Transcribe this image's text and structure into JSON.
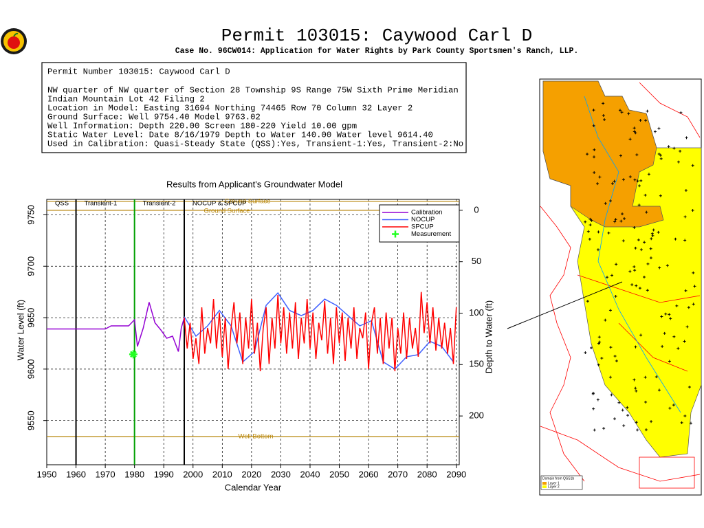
{
  "header": {
    "title": "Permit 103015:  Caywood Carl D",
    "subtitle": "Case No. 96CW014: Application for Water Rights by Park County Sportsmen's Ranch, LLP."
  },
  "info": {
    "lines": [
      "Permit Number 103015: Caywood Carl D",
      "NW quarter of NW quarter of Section 28 Township 9S Range 75W Sixth Prime Meridian",
      "Indian Mountain Lot 42 Filing 2",
      "Location in Model: Easting 31694 Northing  74465 Row  70 Column 32 Layer 2",
      "Ground Surface: Well  9754.40 Model  9763.02",
      "Well Information: Depth   220.00 Screen 180-220 Yield    10.00 gpm",
      "Static Water Level: Date  8/16/1979 Depth to Water   140.00 Water level  9614.40",
      "Used in Calibration: Quasi-Steady State (QSS):Yes, Transient-1:Yes, Transient-2:No"
    ]
  },
  "chart_data": {
    "type": "line",
    "title": "Results from Applicant's Groundwater Model",
    "xlabel": "Calendar Year",
    "ylabel": "Water Level (ft)",
    "y2label": "Depth to Water (ft)",
    "xlim": [
      1950,
      2091
    ],
    "xticks": [
      1950,
      1960,
      1970,
      1980,
      1990,
      2000,
      2010,
      2020,
      2030,
      2040,
      2050,
      2060,
      2070,
      2080,
      2090
    ],
    "ylim": [
      9507,
      9765
    ],
    "yticks": [
      9550,
      9600,
      9650,
      9700,
      9750
    ],
    "y2lim": [
      -10.6,
      247.4
    ],
    "y2ticks": [
      0,
      50,
      100,
      150,
      200
    ],
    "grid": true,
    "periods": [
      {
        "label": "QSS",
        "start": 1950,
        "color": "#000000"
      },
      {
        "label": "Transient-1",
        "start": 1960,
        "color": "#000000"
      },
      {
        "label": "Transient-2",
        "start": 1980,
        "color": "#00a000"
      },
      {
        "label": "NOCUP & SPCUP",
        "start": 1997,
        "color": "#000000"
      }
    ],
    "reference_lines": [
      {
        "label": "Ground Surface",
        "value": 9763.02,
        "color": "#b8860b"
      },
      {
        "label": "Ground Surface",
        "value": 9754.4,
        "color": "#b8860b"
      },
      {
        "label": "Well Bottom",
        "value": 9534.4,
        "color": "#b8860b"
      }
    ],
    "series": [
      {
        "name": "Calibration",
        "color": "#9400d3",
        "x": [
          1950,
          1960,
          1970,
          1972,
          1978,
          1980,
          1981,
          1983,
          1985,
          1987,
          1989,
          1991,
          1993,
          1995,
          1996,
          1997
        ],
        "values": [
          9639,
          9639,
          9639,
          9642,
          9642,
          9648,
          9622,
          9640,
          9665,
          9645,
          9638,
          9630,
          9632,
          9617,
          9640,
          9650
        ]
      },
      {
        "name": "NOCUP",
        "color": "#4060ff",
        "x": [
          1997,
          2001,
          2005,
          2009,
          2013,
          2017,
          2021,
          2025,
          2029,
          2033,
          2037,
          2041,
          2045,
          2049,
          2053,
          2057,
          2061,
          2065,
          2069,
          2073,
          2077,
          2081,
          2085,
          2089
        ],
        "values": [
          9651,
          9632,
          9642,
          9657,
          9642,
          9607,
          9617,
          9662,
          9674,
          9657,
          9652,
          9657,
          9668,
          9662,
          9652,
          9642,
          9647,
          9607,
          9600,
          9612,
          9614,
          9627,
          9622,
          9607
        ]
      },
      {
        "name": "SPCUP",
        "color": "#ff0000",
        "x": [
          1997,
          1998,
          1999,
          2000,
          2001,
          2002,
          2003,
          2004,
          2005,
          2006,
          2007,
          2008,
          2009,
          2010,
          2011,
          2012,
          2013,
          2014,
          2015,
          2016,
          2017,
          2018,
          2019,
          2020,
          2021,
          2022,
          2023,
          2024,
          2025,
          2026,
          2027,
          2028,
          2029,
          2030,
          2031,
          2032,
          2033,
          2034,
          2035,
          2036,
          2037,
          2038,
          2039,
          2040,
          2041,
          2042,
          2043,
          2044,
          2045,
          2046,
          2047,
          2048,
          2049,
          2050,
          2051,
          2052,
          2053,
          2054,
          2055,
          2056,
          2057,
          2058,
          2059,
          2060,
          2061,
          2062,
          2063,
          2064,
          2065,
          2066,
          2067,
          2068,
          2069,
          2070,
          2071,
          2072,
          2073,
          2074,
          2075,
          2076,
          2077,
          2078,
          2079,
          2080,
          2081,
          2082,
          2083,
          2084,
          2085,
          2086,
          2087,
          2088,
          2089,
          2090
        ],
        "values": [
          9650,
          9620,
          9645,
          9610,
          9630,
          9605,
          9660,
          9615,
          9640,
          9625,
          9668,
          9620,
          9655,
          9612,
          9650,
          9600,
          9640,
          9665,
          9625,
          9655,
          9605,
          9650,
          9620,
          9668,
          9615,
          9645,
          9598,
          9640,
          9660,
          9605,
          9650,
          9620,
          9672,
          9625,
          9660,
          9615,
          9655,
          9620,
          9665,
          9610,
          9650,
          9625,
          9668,
          9620,
          9655,
          9610,
          9645,
          9628,
          9666,
          9615,
          9650,
          9605,
          9660,
          9625,
          9655,
          9608,
          9650,
          9620,
          9660,
          9610,
          9640,
          9630,
          9655,
          9600,
          9645,
          9660,
          9615,
          9650,
          9605,
          9655,
          9620,
          9650,
          9598,
          9640,
          9615,
          9655,
          9610,
          9650,
          9620,
          9640,
          9612,
          9675,
          9635,
          9665,
          9625,
          9660,
          9618,
          9650,
          9620,
          9645,
          9615,
          9640,
          9605,
          9660
        ]
      }
    ],
    "measurement": {
      "name": "Measurement",
      "color": "#22ff22",
      "x": [
        1979.6
      ],
      "values": [
        9614.4
      ]
    }
  },
  "map": {
    "legend_title": "Domain from QSS1b",
    "legend": [
      "Layer 1",
      "Layer 2"
    ]
  }
}
